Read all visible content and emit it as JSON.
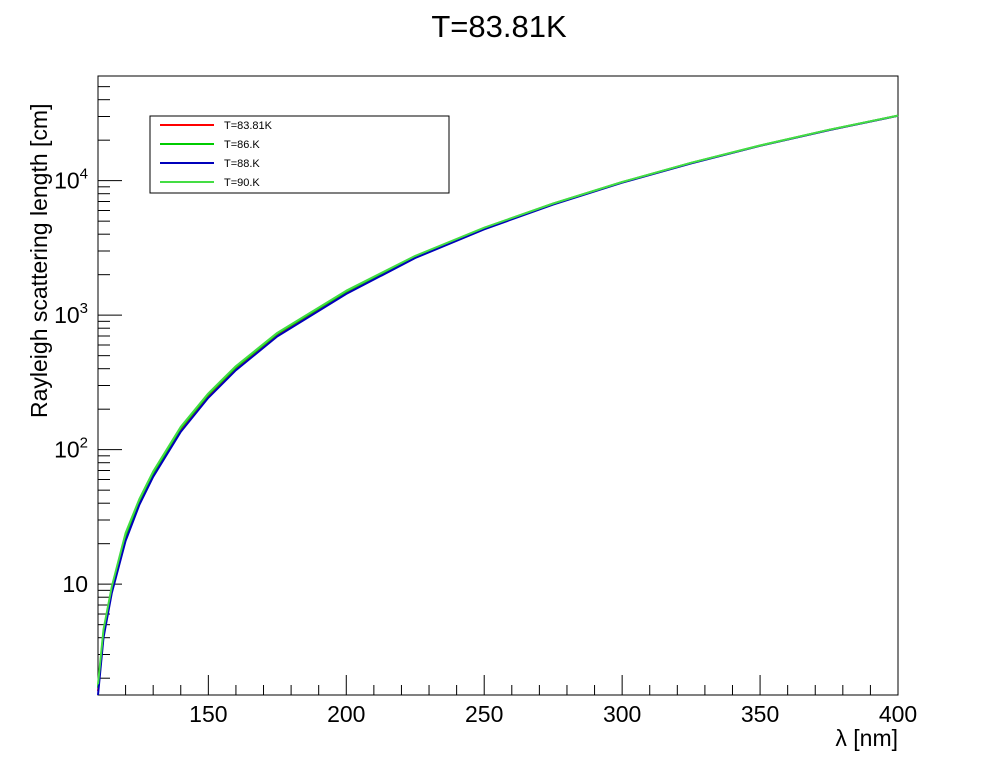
{
  "chart_data": {
    "type": "line",
    "title": "T=83.81K",
    "xlabel": "λ [nm]",
    "ylabel": "Rayleigh scattering length [cm]",
    "xlim": [
      110,
      400
    ],
    "ylim": [
      1.5,
      60000
    ],
    "yscale": "log",
    "grid": false,
    "legend_position": "top-left",
    "x_ticks": [
      {
        "value": 150,
        "label": "150"
      },
      {
        "value": 200,
        "label": "200"
      },
      {
        "value": 250,
        "label": "250"
      },
      {
        "value": 300,
        "label": "300"
      },
      {
        "value": 350,
        "label": "350"
      },
      {
        "value": 400,
        "label": "400"
      }
    ],
    "y_ticks": [
      {
        "value": 10,
        "label": "10",
        "exp": ""
      },
      {
        "value": 100,
        "label": "10",
        "exp": "2"
      },
      {
        "value": 1000,
        "label": "10",
        "exp": "3"
      },
      {
        "value": 10000,
        "label": "10",
        "exp": "4"
      }
    ],
    "x": [
      110,
      112,
      115,
      120,
      125,
      130,
      140,
      150,
      160,
      175,
      200,
      225,
      250,
      275,
      300,
      325,
      350,
      375,
      400
    ],
    "series": [
      {
        "name": "T=83.81K",
        "color": "#ff0000",
        "values": [
          1.6,
          4.2,
          8.9,
          22,
          40,
          65,
          140,
          250,
          400,
          710,
          1470,
          2700,
          4400,
          6700,
          9700,
          13500,
          18200,
          23800,
          30400
        ]
      },
      {
        "name": "T=86.K",
        "color": "#00cc00",
        "values": [
          1.7,
          4.4,
          9.3,
          23,
          42,
          67,
          145,
          257,
          410,
          730,
          1500,
          2740,
          4450,
          6750,
          9750,
          13550,
          18250,
          23850,
          30450
        ]
      },
      {
        "name": "T=88.K",
        "color": "#0000bb",
        "values": [
          1.5,
          4.0,
          8.6,
          21,
          39,
          63,
          136,
          243,
          390,
          695,
          1440,
          2660,
          4350,
          6650,
          9650,
          13450,
          18150,
          23750,
          30350
        ]
      },
      {
        "name": "T=90.K",
        "color": "#44dd44",
        "values": [
          1.8,
          4.6,
          9.6,
          24,
          43,
          69,
          148,
          262,
          418,
          740,
          1520,
          2760,
          4470,
          6770,
          9770,
          13570,
          18270,
          23870,
          30470
        ]
      }
    ]
  }
}
